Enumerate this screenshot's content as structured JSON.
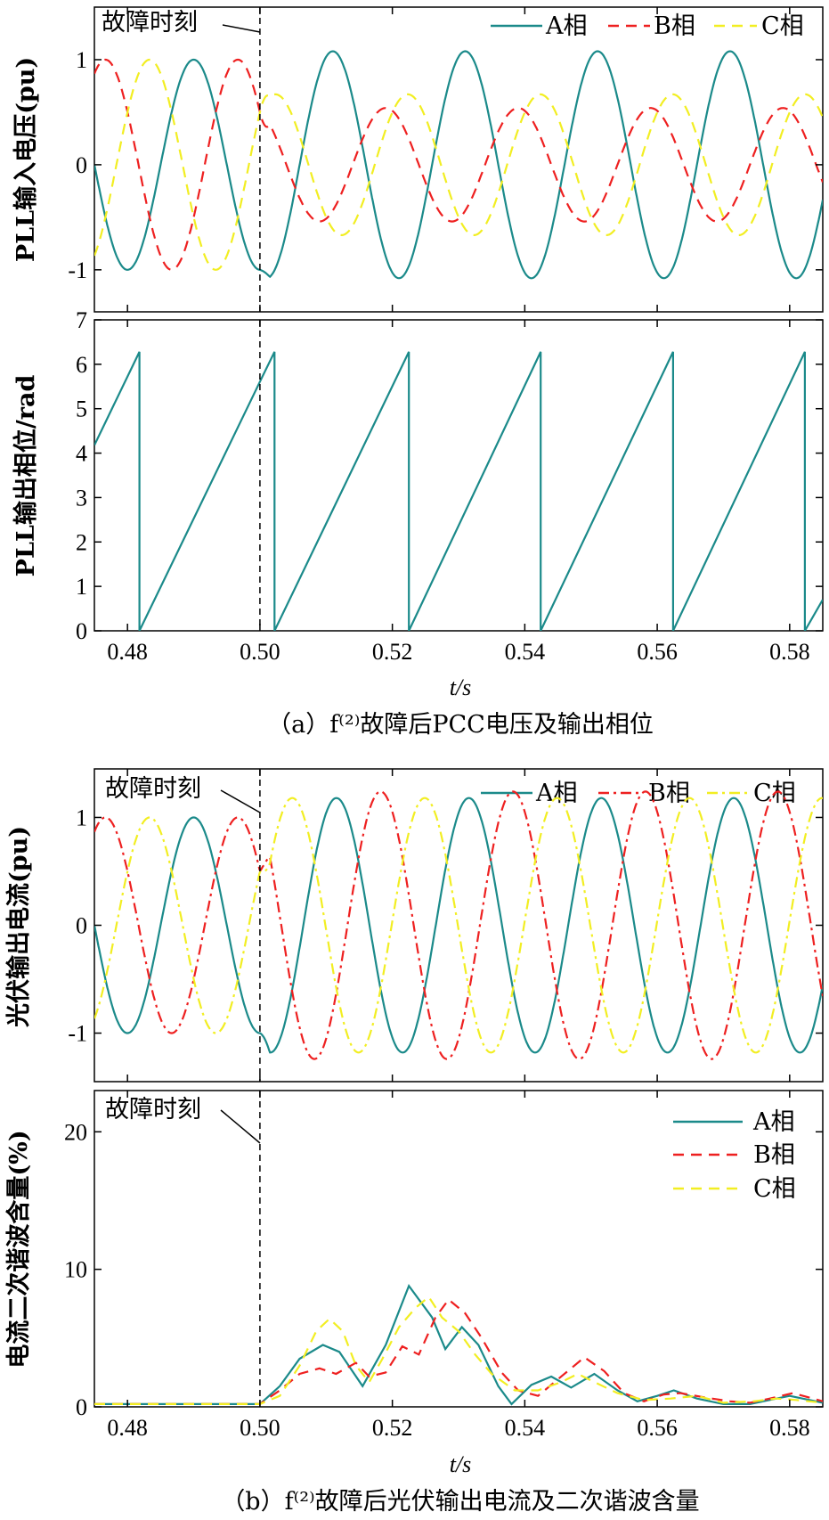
{
  "colors": {
    "A": "#1b8a8a",
    "B": "#ee2020",
    "C": "#f2ee22"
  },
  "x_label": "t/s",
  "fault_label": "故障时刻",
  "chart_data": [
    {
      "id": "a-top",
      "type": "line",
      "ylabel": "PLL输入电压(pu)",
      "xlim": [
        0.475,
        0.585
      ],
      "ylim": [
        -1.4,
        1.5
      ],
      "yticks": [
        "-1",
        "0",
        "1"
      ],
      "ytick_values": [
        -1,
        0,
        1
      ],
      "fault_time": 0.5,
      "frequency_hz": 50,
      "series": [
        {
          "name": "A相",
          "pre_amp": 1.0,
          "pre_phase_deg": -90,
          "post_amp": 1.08,
          "post_phase_deg": -108
        },
        {
          "name": "B相",
          "pre_amp": 1.0,
          "pre_phase_deg": 150,
          "post_amp": 0.54,
          "post_phase_deg": 108
        },
        {
          "name": "C相",
          "pre_amp": 1.0,
          "pre_phase_deg": 30,
          "post_amp": 0.67,
          "post_phase_deg": 48
        }
      ]
    },
    {
      "id": "a-bottom",
      "type": "line",
      "ylabel": "PLL输出相位/rad",
      "xlim": [
        0.475,
        0.585
      ],
      "ylim": [
        0,
        7
      ],
      "yticks": [
        "0",
        "1",
        "2",
        "3",
        "4",
        "5",
        "6",
        "7"
      ],
      "ytick_values": [
        0,
        1,
        2,
        3,
        4,
        5,
        6,
        7
      ],
      "xticks": [
        "0.48",
        "0.50",
        "0.52",
        "0.54",
        "0.56",
        "0.58"
      ],
      "xtick_values": [
        0.48,
        0.5,
        0.52,
        0.54,
        0.56,
        0.58
      ],
      "fault_time": 0.5,
      "series": [
        {
          "name": "A相",
          "points": [
            [
              0.475,
              4.18
            ],
            [
              0.4818,
              6.28
            ],
            [
              0.4818,
              0
            ],
            [
              0.5002,
              5.67
            ],
            [
              0.5022,
              6.28
            ],
            [
              0.5022,
              0
            ],
            [
              0.5225,
              6.28
            ],
            [
              0.5225,
              0
            ],
            [
              0.5424,
              6.28
            ],
            [
              0.5424,
              0
            ],
            [
              0.5624,
              6.28
            ],
            [
              0.5624,
              0
            ],
            [
              0.5823,
              6.28
            ],
            [
              0.5823,
              0
            ],
            [
              0.585,
              0.7
            ]
          ]
        }
      ]
    },
    {
      "id": "b-top",
      "type": "line",
      "ylabel": "光伏输出电流(pu)",
      "xlim": [
        0.475,
        0.585
      ],
      "ylim": [
        -1.45,
        1.45
      ],
      "yticks": [
        "-1",
        "0",
        "1"
      ],
      "ytick_values": [
        -1,
        0,
        1
      ],
      "fault_time": 0.5,
      "frequency_hz": 50,
      "series": [
        {
          "name": "A相",
          "pre_amp": 1.0,
          "pre_phase_deg": -90,
          "post_amp": 1.18,
          "post_phase_deg": -118
        },
        {
          "name": "B相",
          "pre_amp": 1.0,
          "pre_phase_deg": 150,
          "post_amp": 1.24,
          "post_phase_deg": 122
        },
        {
          "name": "C相",
          "pre_amp": 1.0,
          "pre_phase_deg": 30,
          "post_amp": 1.18,
          "post_phase_deg": 2
        }
      ]
    },
    {
      "id": "b-bottom",
      "type": "line",
      "ylabel": "电流二次谐波含量(%)",
      "xlim": [
        0.475,
        0.585
      ],
      "ylim": [
        0,
        23
      ],
      "yticks": [
        "0",
        "10",
        "20"
      ],
      "ytick_values": [
        0,
        10,
        20
      ],
      "xticks": [
        "0.48",
        "0.50",
        "0.52",
        "0.54",
        "0.56",
        "0.58"
      ],
      "xtick_values": [
        0.48,
        0.5,
        0.52,
        0.54,
        0.56,
        0.58
      ],
      "fault_time": 0.5,
      "series": [
        {
          "name": "A相",
          "points": [
            [
              0.475,
              0.2
            ],
            [
              0.5,
              0.2
            ],
            [
              0.503,
              1.5
            ],
            [
              0.506,
              3.5
            ],
            [
              0.5095,
              4.5
            ],
            [
              0.512,
              4.0
            ],
            [
              0.5155,
              1.5
            ],
            [
              0.519,
              4.5
            ],
            [
              0.5225,
              8.8
            ],
            [
              0.526,
              6.5
            ],
            [
              0.528,
              4.2
            ],
            [
              0.5305,
              5.8
            ],
            [
              0.533,
              4.5
            ],
            [
              0.536,
              1.5
            ],
            [
              0.538,
              0.2
            ],
            [
              0.541,
              1.6
            ],
            [
              0.544,
              2.2
            ],
            [
              0.547,
              1.4
            ],
            [
              0.5505,
              2.4
            ],
            [
              0.554,
              1.2
            ],
            [
              0.557,
              0.4
            ],
            [
              0.56,
              0.8
            ],
            [
              0.5625,
              1.2
            ],
            [
              0.566,
              0.6
            ],
            [
              0.57,
              0.2
            ],
            [
              0.574,
              0.2
            ],
            [
              0.578,
              0.6
            ],
            [
              0.58,
              0.8
            ],
            [
              0.583,
              0.5
            ],
            [
              0.585,
              0.3
            ]
          ]
        },
        {
          "name": "B相",
          "points": [
            [
              0.475,
              0.2
            ],
            [
              0.5,
              0.2
            ],
            [
              0.503,
              1.2
            ],
            [
              0.506,
              2.4
            ],
            [
              0.509,
              2.8
            ],
            [
              0.5115,
              2.4
            ],
            [
              0.5145,
              3.2
            ],
            [
              0.5165,
              2.2
            ],
            [
              0.519,
              2.5
            ],
            [
              0.5215,
              4.4
            ],
            [
              0.524,
              3.8
            ],
            [
              0.5265,
              6.5
            ],
            [
              0.5285,
              7.8
            ],
            [
              0.531,
              6.8
            ],
            [
              0.5335,
              5.0
            ],
            [
              0.5365,
              2.5
            ],
            [
              0.539,
              1.2
            ],
            [
              0.542,
              0.8
            ],
            [
              0.545,
              2.0
            ],
            [
              0.549,
              3.6
            ],
            [
              0.552,
              2.6
            ],
            [
              0.555,
              1.0
            ],
            [
              0.558,
              0.4
            ],
            [
              0.561,
              0.9
            ],
            [
              0.5635,
              1.0
            ],
            [
              0.567,
              0.7
            ],
            [
              0.571,
              0.4
            ],
            [
              0.574,
              0.3
            ],
            [
              0.577,
              0.6
            ],
            [
              0.5805,
              1.0
            ],
            [
              0.5835,
              0.6
            ],
            [
              0.585,
              0.4
            ]
          ]
        },
        {
          "name": "C相",
          "points": [
            [
              0.475,
              0.2
            ],
            [
              0.5,
              0.2
            ],
            [
              0.503,
              0.8
            ],
            [
              0.506,
              3.0
            ],
            [
              0.5085,
              5.5
            ],
            [
              0.5105,
              6.4
            ],
            [
              0.5125,
              5.5
            ],
            [
              0.5145,
              3.0
            ],
            [
              0.5165,
              1.8
            ],
            [
              0.5185,
              3.5
            ],
            [
              0.521,
              5.8
            ],
            [
              0.5235,
              7.2
            ],
            [
              0.5255,
              8.0
            ],
            [
              0.5275,
              6.5
            ],
            [
              0.53,
              5.5
            ],
            [
              0.5325,
              3.8
            ],
            [
              0.535,
              2.4
            ],
            [
              0.5385,
              1.2
            ],
            [
              0.542,
              1.2
            ],
            [
              0.5455,
              1.8
            ],
            [
              0.548,
              2.4
            ],
            [
              0.5505,
              1.8
            ],
            [
              0.554,
              1.0
            ],
            [
              0.558,
              0.5
            ],
            [
              0.562,
              0.6
            ],
            [
              0.566,
              0.8
            ],
            [
              0.57,
              0.3
            ],
            [
              0.5745,
              0.4
            ],
            [
              0.578,
              0.6
            ],
            [
              0.581,
              0.5
            ],
            [
              0.585,
              0.3
            ]
          ]
        }
      ]
    }
  ],
  "legends": {
    "a-top": [
      "A相",
      "B相",
      "C相"
    ],
    "b-top": [
      "A相",
      "B相",
      "C相"
    ],
    "b-bottom": [
      "A相",
      "B相",
      "C相"
    ]
  },
  "captions": {
    "a": "（a）f⁽²⁾故障后PCC电压及输出相位",
    "b": "（b）f⁽²⁾故障后光伏输出电流及二次谐波含量"
  }
}
